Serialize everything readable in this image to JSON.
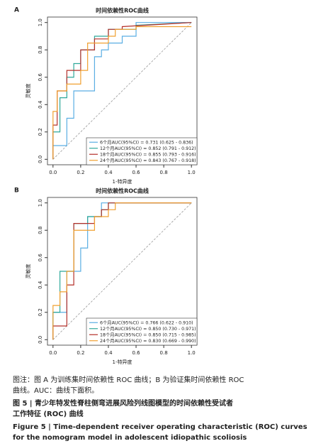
{
  "chart_data": [
    {
      "type": "line",
      "label": "A",
      "title": "时间依赖性ROC曲线",
      "x_label": "1-特异度",
      "y_label": "灵敏度",
      "xlim": [
        -0.04,
        1.04
      ],
      "ylim": [
        -0.04,
        1.04
      ],
      "xticks": [
        {
          "value": 0,
          "label": "0.0"
        },
        0.2,
        0.4,
        0.6,
        0.8,
        {
          "value": 1,
          "label": "1.0"
        }
      ],
      "yticks": [
        {
          "value": 0,
          "label": "0.0"
        },
        0.2,
        0.4,
        0.6,
        0.8,
        {
          "value": 1,
          "label": "1.0"
        }
      ],
      "legend": "lower right",
      "reference_line": true,
      "series": [
        {
          "name": "6个月AUC(95%CI) = 0.731 (0.625 - 0.836)",
          "color": "#5aaee3",
          "x": [
            0,
            0,
            0.1,
            0.1,
            0.15,
            0.15,
            0.3,
            0.3,
            0.35,
            0.35,
            0.4,
            0.4,
            0.5,
            0.5,
            0.6,
            0.6,
            1
          ],
          "values": [
            0,
            0.1,
            0.1,
            0.3,
            0.3,
            0.5,
            0.5,
            0.75,
            0.75,
            0.8,
            0.8,
            0.85,
            0.85,
            0.9,
            0.9,
            1,
            1
          ]
        },
        {
          "name": "12个月AUC(95%CI) = 0.852 (0.791 - 0.912)",
          "color": "#2fa89a",
          "x": [
            0,
            0,
            0.05,
            0.05,
            0.1,
            0.1,
            0.15,
            0.15,
            0.2,
            0.2,
            0.3,
            0.3,
            0.4,
            0.4,
            0.6,
            0.6,
            1
          ],
          "values": [
            0,
            0.2,
            0.2,
            0.45,
            0.45,
            0.6,
            0.6,
            0.7,
            0.7,
            0.8,
            0.8,
            0.9,
            0.9,
            0.95,
            0.95,
            0.98,
            1
          ]
        },
        {
          "name": "18个月AUC(95%CI) = 0.855 (0.793 - 0.916)",
          "color": "#b5302a",
          "x": [
            0,
            0,
            0.03,
            0.03,
            0.1,
            0.1,
            0.2,
            0.2,
            0.3,
            0.3,
            0.4,
            0.4,
            0.5,
            0.5,
            1
          ],
          "values": [
            0,
            0.25,
            0.25,
            0.5,
            0.5,
            0.65,
            0.65,
            0.8,
            0.8,
            0.88,
            0.88,
            0.95,
            0.95,
            0.97,
            1
          ]
        },
        {
          "name": "24个月AUC(95%CI) = 0.843 (0.767 - 0.918)",
          "color": "#f0a030",
          "x": [
            0,
            0,
            0.03,
            0.03,
            0.1,
            0.1,
            0.2,
            0.2,
            0.25,
            0.25,
            0.4,
            0.4,
            0.45,
            0.45,
            0.6,
            0.6,
            1
          ],
          "values": [
            0,
            0.35,
            0.35,
            0.5,
            0.5,
            0.55,
            0.55,
            0.65,
            0.65,
            0.85,
            0.85,
            0.9,
            0.9,
            0.95,
            0.95,
            0.97,
            0.97
          ]
        }
      ]
    },
    {
      "type": "line",
      "label": "B",
      "title": "时间依赖性ROC曲线",
      "x_label": "1-特异度",
      "y_label": "灵敏度",
      "xlim": [
        -0.04,
        1.04
      ],
      "ylim": [
        -0.04,
        1.04
      ],
      "xticks": [
        {
          "value": 0,
          "label": "0.0"
        },
        0.2,
        0.4,
        0.6,
        0.8,
        {
          "value": 1,
          "label": "1.0"
        }
      ],
      "yticks": [
        {
          "value": 0,
          "label": "0.0"
        },
        0.2,
        0.4,
        0.6,
        0.8,
        {
          "value": 1,
          "label": "1.0"
        }
      ],
      "legend": "lower right",
      "reference_line": true,
      "series": [
        {
          "name": "6个月AUC(95%CI) = 0.766 (0.622 - 0.910)",
          "color": "#5aaee3",
          "x": [
            0,
            0,
            0.1,
            0.1,
            0.2,
            0.2,
            0.25,
            0.25,
            0.35,
            0.35,
            1
          ],
          "values": [
            0,
            0.2,
            0.2,
            0.5,
            0.5,
            0.67,
            0.67,
            0.9,
            0.9,
            1,
            1
          ]
        },
        {
          "name": "12个月AUC(95%CI) = 0.850 (0.730 - 0.971)",
          "color": "#2fa89a",
          "x": [
            0,
            0,
            0.05,
            0.05,
            0.15,
            0.15,
            0.25,
            0.25,
            0.35,
            0.35,
            0.4,
            0.4,
            1
          ],
          "values": [
            0,
            0.2,
            0.2,
            0.5,
            0.5,
            0.85,
            0.85,
            0.9,
            0.9,
            0.95,
            0.95,
            1,
            1
          ]
        },
        {
          "name": "18个月AUC(95%CI) = 0.850 (0.715 - 0.985)",
          "color": "#b5302a",
          "x": [
            0,
            0,
            0.1,
            0.1,
            0.15,
            0.15,
            0.3,
            0.3,
            0.35,
            0.35,
            0.4,
            0.4,
            1
          ],
          "values": [
            0,
            0.1,
            0.1,
            0.4,
            0.4,
            0.85,
            0.85,
            0.9,
            0.9,
            0.95,
            0.95,
            1,
            1
          ]
        },
        {
          "name": "24个月AUC(95%CI) = 0.830 (0.669 - 0.990)",
          "color": "#f0a030",
          "x": [
            0,
            0,
            0.05,
            0.05,
            0.1,
            0.1,
            0.15,
            0.15,
            0.3,
            0.3,
            0.4,
            0.4,
            0.45,
            0.45,
            1
          ],
          "values": [
            0,
            0.25,
            0.25,
            0.35,
            0.35,
            0.5,
            0.5,
            0.8,
            0.8,
            0.9,
            0.9,
            0.95,
            0.95,
            1,
            1
          ]
        }
      ]
    }
  ],
  "caption": {
    "note": [
      "图注：图 A 为训练集时间依赖性 ROC 曲线；B 为验证集时间依赖性 ROC",
      "曲线。AUC：曲线下面积。"
    ],
    "title_cn": [
      "图 5 | 青少年特发性脊柱侧弯进展风险列线图模型的时间依赖性受试者",
      "工作特征 (ROC) 曲线"
    ],
    "title_en": [
      "Figure 5 | Time-dependent receiver operating characteristic (ROC) curves",
      "for the nomogram model in adolescent idiopathic scoliosis"
    ]
  }
}
